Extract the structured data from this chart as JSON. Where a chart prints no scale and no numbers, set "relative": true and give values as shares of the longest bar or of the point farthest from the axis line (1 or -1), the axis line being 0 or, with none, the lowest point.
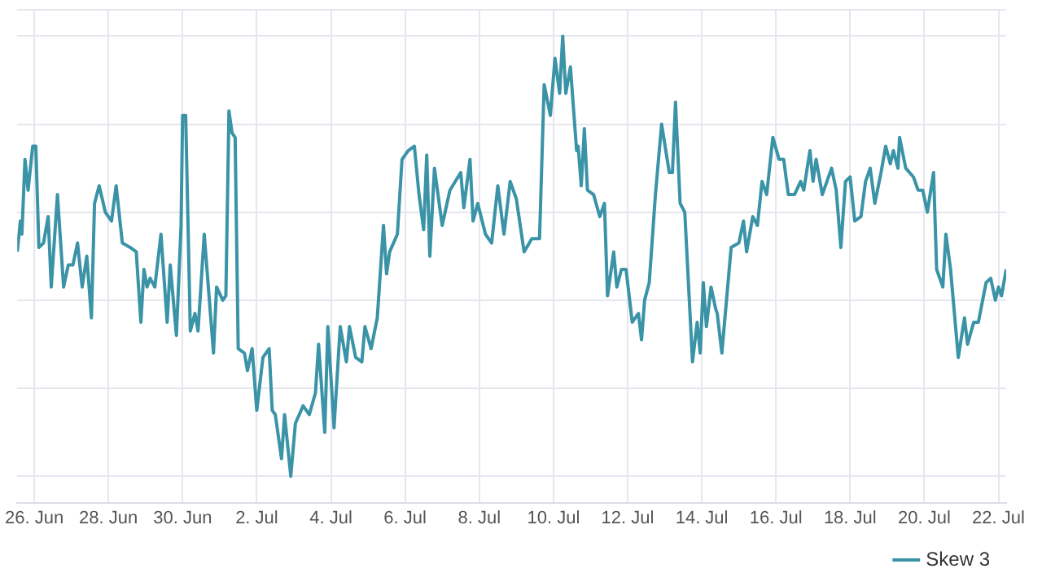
{
  "chart_data": {
    "type": "line",
    "relative": true,
    "grid": true,
    "legend": "bottom right",
    "marker": "none",
    "line_style": "solid",
    "xlim": [
      "--06-25T13:00",
      "--07-22T05:00"
    ],
    "xticks": [
      {
        "value": "--06-26",
        "label": "26. Jun"
      },
      {
        "value": "--06-28",
        "label": "28. Jun"
      },
      {
        "value": "--06-30",
        "label": "30. Jun"
      },
      {
        "value": "--07-02",
        "label": "2. Jul"
      },
      {
        "value": "--07-04",
        "label": "4. Jul"
      },
      {
        "value": "--07-06",
        "label": "6. Jul"
      },
      {
        "value": "--07-08",
        "label": "8. Jul"
      },
      {
        "value": "--07-10",
        "label": "10. Jul"
      },
      {
        "value": "--07-12",
        "label": "12. Jul"
      },
      {
        "value": "--07-14",
        "label": "14. Jul"
      },
      {
        "value": "--07-16",
        "label": "16. Jul"
      },
      {
        "value": "--07-18",
        "label": "18. Jul"
      },
      {
        "value": "--07-20",
        "label": "20. Jul"
      },
      {
        "value": "--07-22",
        "label": "22. Jul"
      }
    ],
    "x": [
      "--06-25T13:00",
      "--06-25T15:00",
      "--06-25T16:00",
      "--06-25T18:00",
      "--06-25T20:00",
      "--06-25T23:00",
      "--06-26T01:00",
      "--06-26T03:00",
      "--06-26T06:00",
      "--06-26T09:00",
      "--06-26T11:00",
      "--06-26T15:00",
      "--06-26T19:00",
      "--06-26T22:00",
      "--06-27T01:00",
      "--06-27T04:00",
      "--06-27T07:00",
      "--06-27T10:00",
      "--06-27T13:00",
      "--06-27T15:00",
      "--06-27T18:00",
      "--06-27T22:00",
      "--06-28T02:00",
      "--06-28T05:00",
      "--06-28T09:00",
      "--06-28T14:00",
      "--06-28T18:00",
      "--06-28T21:00",
      "--06-28T23:00",
      "--06-29T01:00",
      "--06-29T03:00",
      "--06-29T06:00",
      "--06-29T10:00",
      "--06-29T14:00",
      "--06-29T16:00",
      "--06-29T20:00",
      "--06-29T23:00",
      "--06-30T00:00",
      "--06-30T02:00",
      "--06-30T05:00",
      "--06-30T08:00",
      "--06-30T10:00",
      "--06-30T14:00",
      "--06-30T20:00",
      "--06-30T22:00",
      "--07-01T02:00",
      "--07-01T04:00",
      "--07-01T06:00",
      "--07-01T08:00",
      "--07-01T10:00",
      "--07-01T12:00",
      "--07-01T16:00",
      "--07-01T18:00",
      "--07-01T21:00",
      "--07-02T00:00",
      "--07-02T04:00",
      "--07-02T08:00",
      "--07-02T10:00",
      "--07-02T12:00",
      "--07-02T16:00",
      "--07-02T18:00",
      "--07-02T22:00",
      "--07-03T01:00",
      "--07-03T06:00",
      "--07-03T10:00",
      "--07-03T14:00",
      "--07-03T16:00",
      "--07-03T20:00",
      "--07-03T22:00",
      "--07-04T02:00",
      "--07-04T06:00",
      "--07-04T10:00",
      "--07-04T12:00",
      "--07-04T16:00",
      "--07-04T20:00",
      "--07-04T22:00",
      "--07-05T02:00",
      "--07-05T06:00",
      "--07-05T10:00",
      "--07-05T12:00",
      "--07-05T14:00",
      "--07-05T19:00",
      "--07-05T22:00",
      "--07-06T02:00",
      "--07-06T06:00",
      "--07-06T09:00",
      "--07-06T12:00",
      "--07-06T14:00",
      "--07-06T16:00",
      "--07-06T19:00",
      "--07-07T00:00",
      "--07-07T05:00",
      "--07-07T12:00",
      "--07-07T14:00",
      "--07-07T18:00",
      "--07-07T20:00",
      "--07-07T23:00",
      "--07-08T04:00",
      "--07-08T08:00",
      "--07-08T12:00",
      "--07-08T16:00",
      "--07-08T20:00",
      "--07-09T00:00",
      "--07-09T05:00",
      "--07-09T10:00",
      "--07-09T15:00",
      "--07-09T18:00",
      "--07-09T22:00",
      "--07-10T01:00",
      "--07-10T04:00",
      "--07-10T06:00",
      "--07-10T08:00",
      "--07-10T11:00",
      "--07-10T15:00",
      "--07-10T16:00",
      "--07-10T18:00",
      "--07-10T20:00",
      "--07-10T22:00",
      "--07-11T02:00",
      "--07-11T06:00",
      "--07-11T09:00",
      "--07-11T11:00",
      "--07-11T15:00",
      "--07-11T17:00",
      "--07-11T20:00",
      "--07-11T23:00",
      "--07-12T03:00",
      "--07-12T07:00",
      "--07-12T09:00",
      "--07-12T11:00",
      "--07-12T14:00",
      "--07-12T18:00",
      "--07-12T22:00",
      "--07-13T03:00",
      "--07-13T05:00",
      "--07-13T07:00",
      "--07-13T10:00",
      "--07-13T13:00",
      "--07-13T18:00",
      "--07-13T21:00",
      "--07-13T23:00",
      "--07-14T01:00",
      "--07-14T03:00",
      "--07-14T06:00",
      "--07-14T09:00",
      "--07-14T10:00",
      "--07-14T13:00",
      "--07-14T19:00",
      "--07-15T00:00",
      "--07-15T03:00",
      "--07-15T05:00",
      "--07-15T09:00",
      "--07-15T12:00",
      "--07-15T15:00",
      "--07-15T18:00",
      "--07-15T22:00",
      "--07-16T02:00",
      "--07-16T05:00",
      "--07-16T08:00",
      "--07-16T12:00",
      "--07-16T16:00",
      "--07-16T18:00",
      "--07-16T22:00",
      "--07-17T00:00",
      "--07-17T02:00",
      "--07-17T06:00",
      "--07-17T09:00",
      "--07-17T12:00",
      "--07-17T15:00",
      "--07-17T18:00",
      "--07-17T21:00",
      "--07-18T00:00",
      "--07-18T03:00",
      "--07-18T07:00",
      "--07-18T10:00",
      "--07-18T13:00",
      "--07-18T16:00",
      "--07-18T20:00",
      "--07-18T23:00",
      "--07-19T02:00",
      "--07-19T04:00",
      "--07-19T07:00",
      "--07-19T08:00",
      "--07-19T12:00",
      "--07-19T17:00",
      "--07-19T20:00",
      "--07-19T23:00",
      "--07-20T02:00",
      "--07-20T06:00",
      "--07-20T08:00",
      "--07-20T12:00",
      "--07-20T14:00",
      "--07-20T17:00",
      "--07-20T22:00",
      "--07-21T02:00",
      "--07-21T04:00",
      "--07-21T08:00",
      "--07-21T11:00",
      "--07-21T16:00",
      "--07-21T19:00",
      "--07-21T22:00",
      "--07-22T00:00",
      "--07-22T02:00",
      "--07-22T05:00"
    ],
    "series": [
      {
        "name": "Skew 3",
        "color": "#3a93a6",
        "values": [
          0.51,
          0.58,
          0.55,
          0.72,
          0.65,
          0.75,
          0.75,
          0.52,
          0.53,
          0.59,
          0.43,
          0.64,
          0.43,
          0.48,
          0.48,
          0.53,
          0.43,
          0.5,
          0.36,
          0.62,
          0.66,
          0.6,
          0.58,
          0.66,
          0.53,
          0.52,
          0.51,
          0.35,
          0.47,
          0.43,
          0.45,
          0.43,
          0.55,
          0.35,
          0.48,
          0.32,
          0.57,
          0.82,
          0.82,
          0.33,
          0.37,
          0.33,
          0.55,
          0.28,
          0.43,
          0.4,
          0.41,
          0.83,
          0.78,
          0.77,
          0.29,
          0.28,
          0.24,
          0.29,
          0.15,
          0.27,
          0.29,
          0.15,
          0.14,
          0.04,
          0.14,
          0,
          0.12,
          0.16,
          0.14,
          0.19,
          0.3,
          0.1,
          0.34,
          0.11,
          0.34,
          0.26,
          0.34,
          0.27,
          0.26,
          0.34,
          0.29,
          0.36,
          0.57,
          0.46,
          0.51,
          0.55,
          0.72,
          0.74,
          0.75,
          0.64,
          0.56,
          0.73,
          0.5,
          0.7,
          0.57,
          0.65,
          0.69,
          0.61,
          0.72,
          0.58,
          0.62,
          0.55,
          0.53,
          0.66,
          0.55,
          0.67,
          0.63,
          0.51,
          0.54,
          0.54,
          0.89,
          0.82,
          0.95,
          0.87,
          1,
          0.87,
          0.93,
          0.74,
          0.75,
          0.66,
          0.79,
          0.65,
          0.64,
          0.59,
          0.62,
          0.41,
          0.51,
          0.43,
          0.47,
          0.47,
          0.35,
          0.37,
          0.31,
          0.4,
          0.44,
          0.64,
          0.8,
          0.69,
          0.69,
          0.85,
          0.62,
          0.6,
          0.26,
          0.35,
          0.28,
          0.44,
          0.34,
          0.43,
          0.38,
          0.37,
          0.28,
          0.52,
          0.53,
          0.58,
          0.51,
          0.59,
          0.57,
          0.67,
          0.64,
          0.77,
          0.72,
          0.72,
          0.64,
          0.64,
          0.67,
          0.65,
          0.74,
          0.67,
          0.72,
          0.64,
          0.67,
          0.7,
          0.65,
          0.52,
          0.67,
          0.68,
          0.58,
          0.59,
          0.67,
          0.7,
          0.62,
          0.69,
          0.75,
          0.71,
          0.74,
          0.7,
          0.77,
          0.7,
          0.68,
          0.65,
          0.65,
          0.6,
          0.69,
          0.47,
          0.43,
          0.55,
          0.47,
          0.27,
          0.36,
          0.3,
          0.35,
          0.35,
          0.44,
          0.45,
          0.4,
          0.43,
          0.41,
          0.47
        ]
      }
    ]
  }
}
